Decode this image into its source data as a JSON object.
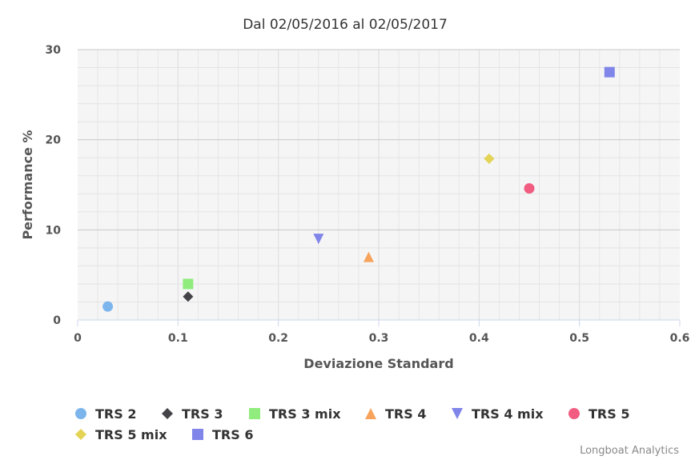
{
  "chart_data": {
    "type": "scatter",
    "title": "Dal 02/05/2016 al 02/05/2017",
    "xlabel": "Deviazione Standard",
    "ylabel": "Performance %",
    "xlim": [
      0,
      0.6
    ],
    "ylim": [
      0,
      30
    ],
    "x_ticks": [
      "0",
      "0.1",
      "0.2",
      "0.3",
      "0.4",
      "0.5",
      "0.6"
    ],
    "y_ticks": [
      "0",
      "10",
      "20",
      "30"
    ],
    "grid": true,
    "legend_position": "bottom",
    "series": [
      {
        "name": "TRS 2",
        "marker": "circle",
        "color": "#7cb5ec",
        "x": 0.03,
        "y": 1.5
      },
      {
        "name": "TRS 3",
        "marker": "diamond",
        "color": "#434348",
        "x": 0.11,
        "y": 2.6
      },
      {
        "name": "TRS 3 mix",
        "marker": "square",
        "color": "#90ed7d",
        "x": 0.11,
        "y": 4.0
      },
      {
        "name": "TRS 4",
        "marker": "triangle",
        "color": "#f7a35c",
        "x": 0.29,
        "y": 7.0
      },
      {
        "name": "TRS 4 mix",
        "marker": "triangle-down",
        "color": "#8085e9",
        "x": 0.24,
        "y": 9.0
      },
      {
        "name": "TRS 5",
        "marker": "circle",
        "color": "#f15c80",
        "x": 0.45,
        "y": 14.6
      },
      {
        "name": "TRS 5 mix",
        "marker": "diamond",
        "color": "#e4d354",
        "x": 0.41,
        "y": 17.9
      },
      {
        "name": "TRS 6",
        "marker": "square",
        "color": "#8085e9",
        "x": 0.53,
        "y": 27.5
      }
    ]
  },
  "credits": "Longboat Analytics"
}
